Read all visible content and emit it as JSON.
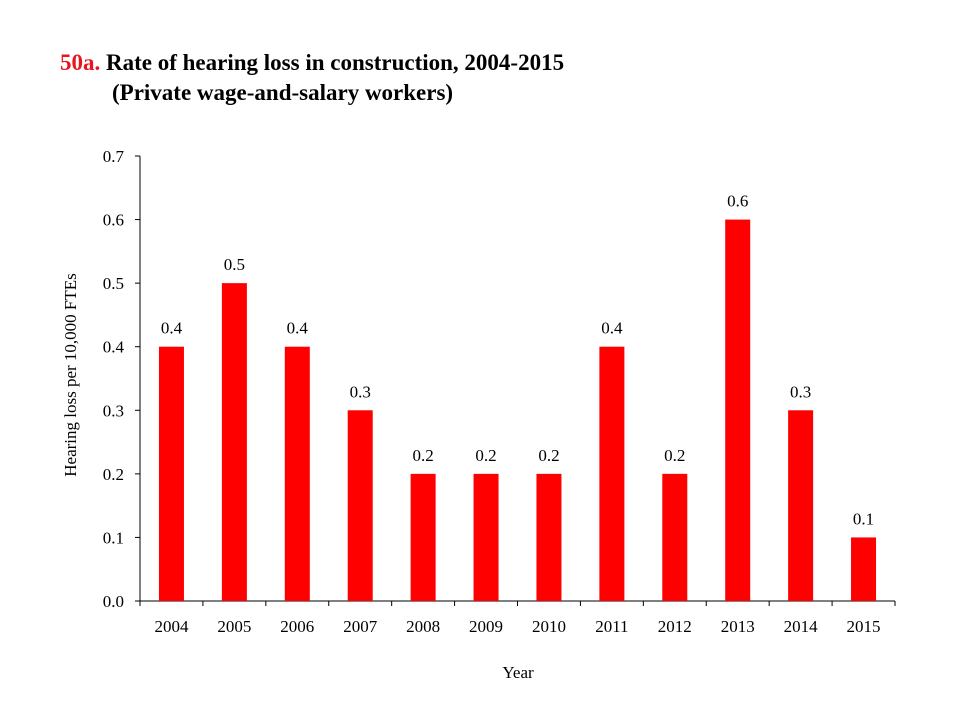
{
  "title": {
    "number": "50a.",
    "line1": "Rate of hearing loss in construction, 2004-2015",
    "line2": "(Private wage-and-salary workers)"
  },
  "chart_data": {
    "type": "bar",
    "categories": [
      "2004",
      "2005",
      "2006",
      "2007",
      "2008",
      "2009",
      "2010",
      "2011",
      "2012",
      "2013",
      "2014",
      "2015"
    ],
    "values": [
      0.4,
      0.5,
      0.4,
      0.3,
      0.2,
      0.2,
      0.2,
      0.4,
      0.2,
      0.6,
      0.3,
      0.1
    ],
    "data_labels": [
      "0.4",
      "0.5",
      "0.4",
      "0.3",
      "0.2",
      "0.2",
      "0.2",
      "0.4",
      "0.2",
      "0.6",
      "0.3",
      "0.1"
    ],
    "xlabel": "Year",
    "ylabel": "Hearing loss per 10,000 FTEs",
    "ylim": [
      0,
      0.7
    ],
    "yticks": [
      "0.0",
      "0.1",
      "0.2",
      "0.3",
      "0.4",
      "0.5",
      "0.6",
      "0.7"
    ],
    "grid": false,
    "bar_color": "#ff0000"
  }
}
